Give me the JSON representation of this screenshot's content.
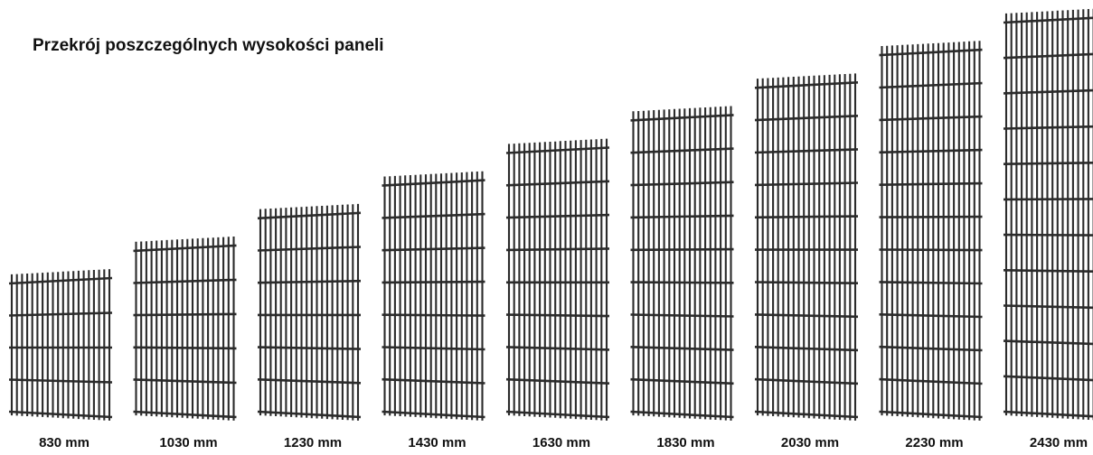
{
  "title": "Przekrój poszczególnych wysokości paneli",
  "panels": [
    {
      "label": "830 mm",
      "height_mm": 830
    },
    {
      "label": "1030 mm",
      "height_mm": 1030
    },
    {
      "label": "1230 mm",
      "height_mm": 1230
    },
    {
      "label": "1430 mm",
      "height_mm": 1430
    },
    {
      "label": "1630 mm",
      "height_mm": 1630
    },
    {
      "label": "1830 mm",
      "height_mm": 1830
    },
    {
      "label": "2030 mm",
      "height_mm": 2030
    },
    {
      "label": "2230 mm",
      "height_mm": 2230
    },
    {
      "label": "2430 mm",
      "height_mm": 2430
    }
  ],
  "colors": {
    "wire": "#2b2b2b",
    "text": "#111111"
  }
}
